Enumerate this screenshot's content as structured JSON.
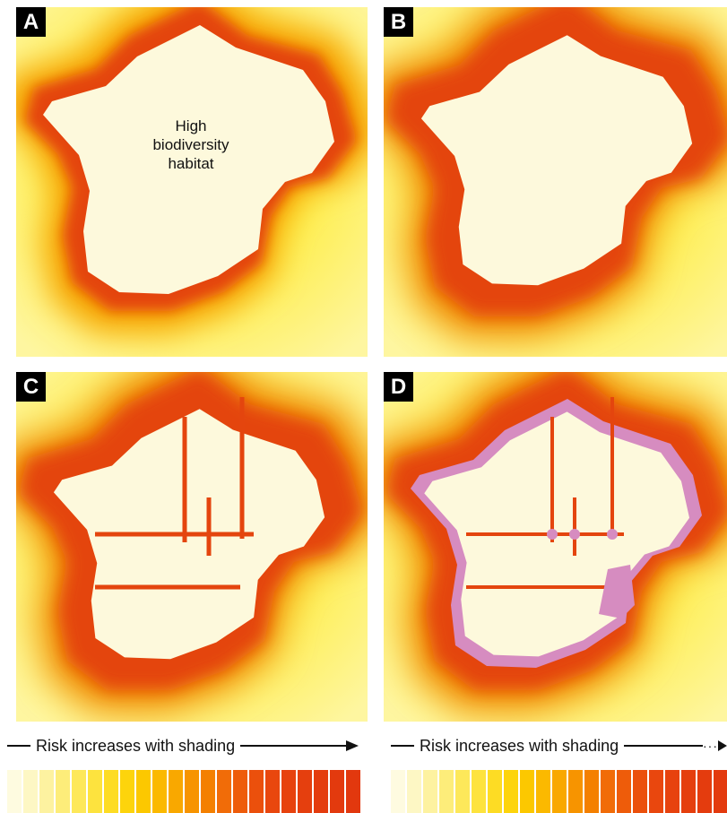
{
  "panels": [
    {
      "id": "A",
      "label": "A",
      "roads": false,
      "loss": false,
      "habitat_text": [
        "High",
        "biodiversity",
        "habitat"
      ]
    },
    {
      "id": "B",
      "label": "B",
      "roads": false,
      "loss": false,
      "habitat_text": []
    },
    {
      "id": "C",
      "label": "C",
      "roads": true,
      "loss": false,
      "habitat_text": []
    },
    {
      "id": "D",
      "label": "D",
      "roads": true,
      "loss": true,
      "habitat_text": []
    }
  ],
  "legend_left": {
    "title": "Risk increases with shading"
  },
  "legend_right": {
    "title": "Risk increases with shading"
  },
  "colors": {
    "habitat": "#fdf9dc",
    "background": "#fde600",
    "edge": "#e4450e",
    "loss": "#d68cc0",
    "legend_ramp": [
      "#fefbe0",
      "#fdf7c4",
      "#fdf2a0",
      "#fded7a",
      "#fde85a",
      "#fde33e",
      "#fddc24",
      "#fdd40c",
      "#fcc800",
      "#fbb900",
      "#f9a800",
      "#f79400",
      "#f48000",
      "#f16c08",
      "#ee5c0a",
      "#eb500c",
      "#e9470e",
      "#e7420e",
      "#e53f0e",
      "#e43c0e",
      "#e33a0e",
      "#e2380e"
    ]
  }
}
